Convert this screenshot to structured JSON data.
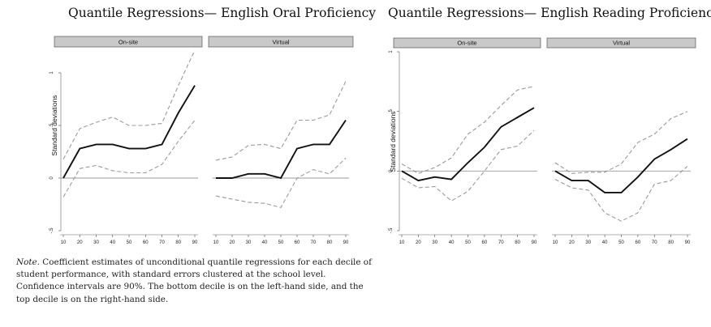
{
  "figures": [
    {
      "title": "Quantile Regressions— English Oral Proficiency"
    },
    {
      "title": "Quantile Regressions— English Reading Proficiency"
    }
  ],
  "note": {
    "label": "Note.",
    "text": "Coefficient estimates of unconditional quantile regressions for each decile of student performance, with standard errors clustered at the school level. Confidence intervals are 90%. The bottom decile is on the left-hand side, and the top decile is on the right-hand side."
  },
  "chart_data": [
    {
      "type": "line",
      "title": "Quantile Regressions— English Oral Proficiency",
      "ylabel": "Standard deviations",
      "ylim": [
        -0.5,
        1
      ],
      "yticks": [
        -0.5,
        0,
        0.5,
        1
      ],
      "ytick_labels": [
        "-.5",
        "0",
        ".5",
        "1"
      ],
      "x": [
        10,
        20,
        30,
        40,
        50,
        60,
        70,
        80,
        90
      ],
      "panels": [
        {
          "name": "On-site",
          "estimate": [
            0,
            0.28,
            0.32,
            0.32,
            0.28,
            0.28,
            0.32,
            0.62,
            0.88
          ],
          "ci_upper": [
            0.18,
            0.47,
            0.53,
            0.58,
            0.5,
            0.5,
            0.52,
            0.88,
            1.22
          ],
          "ci_lower": [
            -0.18,
            0.09,
            0.12,
            0.07,
            0.05,
            0.05,
            0.13,
            0.35,
            0.55
          ]
        },
        {
          "name": "Virtual",
          "estimate": [
            0,
            0,
            0.04,
            0.04,
            0,
            0.28,
            0.32,
            0.32,
            0.55
          ],
          "ci_upper": [
            0.17,
            0.2,
            0.31,
            0.32,
            0.28,
            0.55,
            0.55,
            0.6,
            0.92
          ],
          "ci_lower": [
            -0.17,
            -0.2,
            -0.23,
            -0.24,
            -0.28,
            0.0,
            0.08,
            0.04,
            0.19
          ]
        }
      ]
    },
    {
      "type": "line",
      "title": "Quantile Regressions— English Reading Proficiency",
      "ylabel": "Standard deviations",
      "ylim": [
        -0.5,
        1
      ],
      "yticks": [
        -0.5,
        0,
        0.5,
        1
      ],
      "ytick_labels": [
        "-.5",
        "0",
        ".5",
        "1"
      ],
      "x": [
        10,
        20,
        30,
        40,
        50,
        60,
        70,
        80,
        90
      ],
      "panels": [
        {
          "name": "On-site",
          "estimate": [
            0,
            -0.08,
            -0.05,
            -0.07,
            0.07,
            0.2,
            0.37,
            0.45,
            0.53
          ],
          "ci_upper": [
            0.06,
            -0.02,
            0.03,
            0.11,
            0.31,
            0.41,
            0.55,
            0.68,
            0.71
          ],
          "ci_lower": [
            -0.06,
            -0.14,
            -0.13,
            -0.25,
            -0.17,
            0.0,
            0.18,
            0.21,
            0.34
          ]
        },
        {
          "name": "Virtual",
          "estimate": [
            0,
            -0.08,
            -0.08,
            -0.18,
            -0.18,
            -0.05,
            0.1,
            0.18,
            0.27
          ],
          "ci_upper": [
            0.07,
            -0.02,
            -0.01,
            -0.01,
            0.06,
            0.24,
            0.31,
            0.44,
            0.5
          ],
          "ci_lower": [
            -0.07,
            -0.14,
            -0.16,
            -0.35,
            -0.42,
            -0.35,
            -0.11,
            -0.08,
            0.04
          ]
        }
      ]
    }
  ]
}
